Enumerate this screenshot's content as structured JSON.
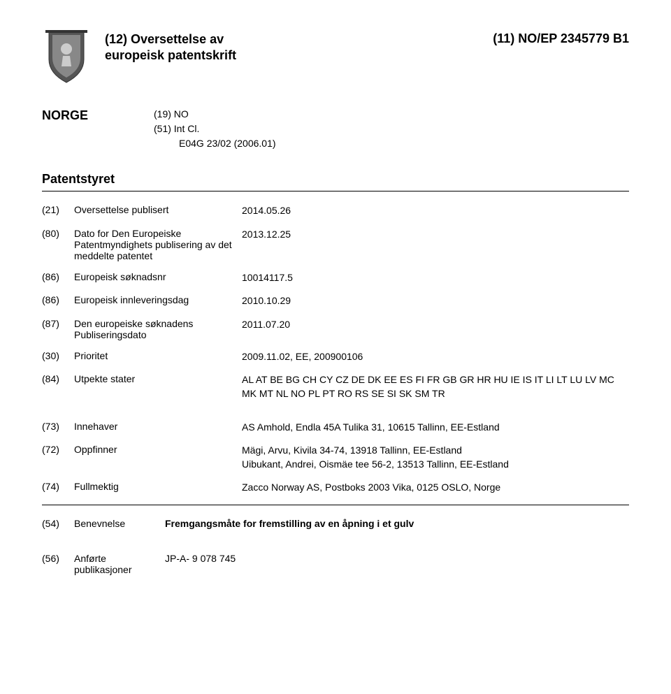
{
  "header": {
    "left_line1": "(12) Oversettelse av",
    "left_line2": "europeisk patentskrift",
    "right": "(11) NO/EP 2345779 B1"
  },
  "norge": {
    "label": "NORGE",
    "line1": "(19)   NO",
    "line2": "(51)   Int Cl.",
    "line3": "E04G 23/02  (2006.01)"
  },
  "patentstyret": "Patentstyret",
  "fields": [
    {
      "code": "(21)",
      "label": "Oversettelse publisert",
      "value": "2014.05.26"
    },
    {
      "code": "(80)",
      "label": "Dato for Den Europeiske Patentmyndighets publisering av det meddelte patentet",
      "value": "2013.12.25"
    },
    {
      "code": "(86)",
      "label": "Europeisk søknadsnr",
      "value": "10014117.5"
    },
    {
      "code": "(86)",
      "label": "Europeisk innleveringsdag",
      "value": "2010.10.29"
    },
    {
      "code": "(87)",
      "label": "Den europeiske søknadens Publiseringsdato",
      "value": "2011.07.20"
    },
    {
      "code": "(30)",
      "label": "Prioritet",
      "value": "2009.11.02, EE, 200900106"
    },
    {
      "code": "(84)",
      "label": "Utpekte stater",
      "value": "AL AT BE BG CH CY CZ DE DK EE ES FI FR GB GR HR HU IE IS IT LI LT LU LV MC MK MT NL NO PL PT RO RS SE SI SK SM TR"
    },
    {
      "code": "(73)",
      "label": "Innehaver",
      "value": "AS Amhold, Endla 45A Tulika 31, 10615 Tallinn, EE-Estland"
    },
    {
      "code": "(72)",
      "label": "Oppfinner",
      "value": "Mägi, Arvu, Kivila 34-74, 13918 Tallinn, EE-Estland\nUibukant, Andrei, Oismäe tee 56-2, 13513 Tallinn, EE-Estland"
    },
    {
      "code": "(74)",
      "label": "Fullmektig",
      "value": "Zacco Norway AS, Postboks 2003 Vika, 0125 OSLO, Norge"
    }
  ],
  "footer": [
    {
      "code": "(54)",
      "label": "Benevnelse",
      "value": "Fremgangsmåte for fremstilling av en åpning i et gulv",
      "bold": true
    },
    {
      "code": "(56)",
      "label": "Anførte publikasjoner",
      "value": "JP-A- 9 078 745",
      "bold": false
    }
  ]
}
